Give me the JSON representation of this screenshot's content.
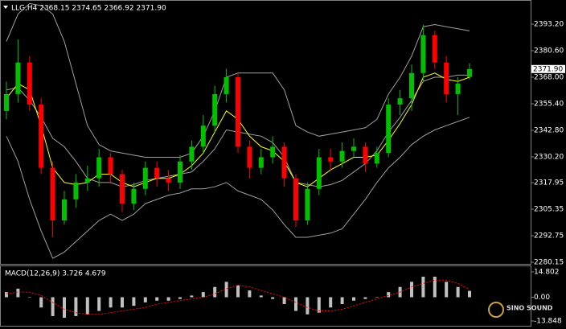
{
  "chart_data": [
    {
      "type": "candlestick",
      "title": "LLG,H4  2368.15 2374.65 2366.92 2371.90",
      "up_color": "#00c000",
      "down_color": "#ff0000",
      "open": [
        2352,
        2360,
        2375,
        2355,
        2325,
        2300,
        2310,
        2318,
        2320,
        2330,
        2322,
        2308,
        2315,
        2325,
        2320,
        2318,
        2328,
        2335,
        2345,
        2360,
        2368,
        2335,
        2325,
        2330,
        2335,
        2320,
        2300,
        2315,
        2330,
        2328,
        2333,
        2335,
        2327,
        2332,
        2355,
        2358,
        2370,
        2388,
        2375,
        2360,
        2368.15
      ],
      "high": [
        2366,
        2386,
        2378,
        2358,
        2328,
        2314,
        2322,
        2326,
        2334,
        2332,
        2324,
        2318,
        2328,
        2328,
        2324,
        2331,
        2338,
        2350,
        2364,
        2372,
        2370,
        2338,
        2334,
        2340,
        2337,
        2322,
        2318,
        2334,
        2334,
        2337,
        2339,
        2337,
        2335,
        2358,
        2362,
        2374,
        2393,
        2390,
        2378,
        2368,
        2374.65
      ],
      "low": [
        2348,
        2356,
        2352,
        2322,
        2292,
        2298,
        2306,
        2314,
        2316,
        2318,
        2304,
        2305,
        2312,
        2316,
        2314,
        2315,
        2324,
        2332,
        2342,
        2356,
        2332,
        2320,
        2322,
        2327,
        2316,
        2297,
        2298,
        2312,
        2324,
        2325,
        2330,
        2323,
        2325,
        2330,
        2350,
        2352,
        2366,
        2372,
        2356,
        2350,
        2366.92
      ],
      "close": [
        2360,
        2375,
        2355,
        2325,
        2300,
        2310,
        2318,
        2320,
        2330,
        2322,
        2308,
        2315,
        2325,
        2320,
        2318,
        2328,
        2335,
        2345,
        2360,
        2368,
        2335,
        2325,
        2330,
        2335,
        2320,
        2300,
        2315,
        2330,
        2328,
        2333,
        2335,
        2327,
        2332,
        2355,
        2358,
        2370,
        2388,
        2375,
        2360,
        2365,
        2371.9
      ],
      "overlays": [
        {
          "color": "#a0a0a0",
          "values": [
            2385,
            2398,
            2403,
            2402,
            2398,
            2385,
            2365,
            2345,
            2336,
            2333,
            2332,
            2331,
            2330,
            2330,
            2330,
            2330,
            2332,
            2340,
            2352,
            2368,
            2370,
            2370,
            2370,
            2370,
            2362,
            2345,
            2342,
            2340,
            2341,
            2342,
            2343,
            2344,
            2348,
            2360,
            2368,
            2378,
            2392,
            2393,
            2392,
            2391,
            2390
          ]
        },
        {
          "color": "#a0a0a0",
          "values": [
            2362,
            2363,
            2357,
            2349,
            2339,
            2335,
            2328,
            2320,
            2318,
            2318,
            2316,
            2317,
            2319,
            2320,
            2321,
            2322,
            2323,
            2328,
            2334,
            2343,
            2342,
            2341,
            2340,
            2337,
            2330,
            2318,
            2317,
            2316,
            2317,
            2319,
            2323,
            2327,
            2333,
            2342,
            2349,
            2357,
            2366,
            2368,
            2368,
            2369,
            2369
          ]
        },
        {
          "color": "#a0a0a0",
          "values": [
            2340,
            2328,
            2310,
            2295,
            2282,
            2285,
            2290,
            2295,
            2300,
            2303,
            2300,
            2303,
            2308,
            2310,
            2312,
            2313,
            2315,
            2315,
            2316,
            2318,
            2314,
            2312,
            2310,
            2305,
            2298,
            2292,
            2292,
            2293,
            2294,
            2296,
            2303,
            2310,
            2318,
            2325,
            2330,
            2336,
            2340,
            2343,
            2345,
            2347,
            2349
          ]
        },
        {
          "color": "#ffff00",
          "values": [
            2358,
            2365,
            2362,
            2345,
            2325,
            2318,
            2317,
            2318,
            2322,
            2322,
            2318,
            2316,
            2318,
            2320,
            2320,
            2322,
            2326,
            2332,
            2342,
            2352,
            2348,
            2340,
            2335,
            2333,
            2328,
            2318,
            2316,
            2320,
            2324,
            2327,
            2330,
            2330,
            2331,
            2338,
            2346,
            2355,
            2368,
            2370,
            2367,
            2366,
            2368
          ]
        }
      ],
      "ylim": [
        2279.4,
        2403.9
      ],
      "yticks": [
        {
          "value": 2393.2,
          "label": "2393.20"
        },
        {
          "value": 2380.6,
          "label": "2380.60"
        },
        {
          "value": 2368,
          "label": "2368.00"
        },
        {
          "value": 2355.4,
          "label": "2355.40"
        },
        {
          "value": 2342.8,
          "label": "2342.80"
        },
        {
          "value": 2330.2,
          "label": "2330.20"
        },
        {
          "value": 2317.95,
          "label": "2317.95"
        },
        {
          "value": 2305.35,
          "label": "2305.35"
        },
        {
          "value": 2292.75,
          "label": "2292.75"
        },
        {
          "value": 2280.15,
          "label": "2280.15"
        }
      ],
      "last_price": {
        "value": 2371.9,
        "label": "2371.90"
      }
    },
    {
      "type": "macd",
      "title": "MACD(12,26,9) 3.726 4.679",
      "color": "#c0c0c0",
      "values": [
        3,
        5,
        0,
        -6,
        -11,
        -12,
        -11,
        -10,
        -8,
        -6,
        -6,
        -5,
        -3,
        -2,
        -2,
        -1,
        1,
        3,
        6,
        9,
        7,
        4,
        1,
        -1,
        -4,
        -8,
        -10,
        -9,
        -6,
        -4,
        -2,
        -1,
        0,
        3,
        6,
        9,
        12,
        12,
        9,
        6,
        3.726
      ],
      "signal": {
        "color": "#ff0000",
        "values": [
          2,
          3,
          3,
          1,
          -3,
          -7,
          -9,
          -10,
          -10,
          -9,
          -8,
          -7,
          -6,
          -4,
          -3,
          -2,
          -1,
          0,
          2,
          5,
          7,
          6,
          4,
          2,
          0,
          -3,
          -6,
          -8,
          -8,
          -7,
          -5,
          -3,
          -1,
          1,
          3,
          6,
          8,
          10,
          10,
          8,
          4.679
        ]
      },
      "ylim": [
        -16.2,
        18.09
      ],
      "yticks": [
        14.802,
        {
          "value": 0,
          "label": "0.00"
        },
        -13.848
      ],
      "watermark": "SINO SOUND"
    }
  ]
}
